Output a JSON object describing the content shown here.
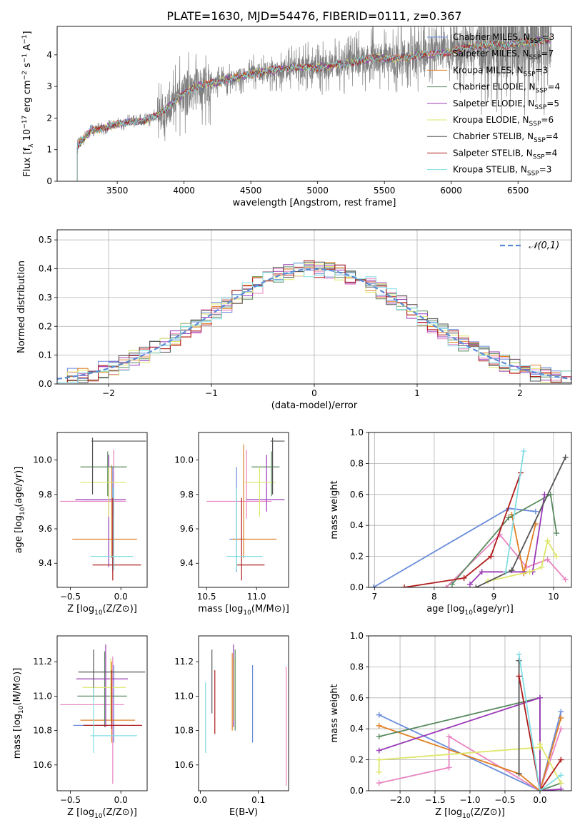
{
  "figure_title": "PLATE=1630, MJD=54476, FIBERID=0111, z=0.367",
  "series_colors": [
    "#6a8ddb",
    "#e884c0",
    "#e07f24",
    "#5a8a5f",
    "#9a3ab6",
    "#dde66a",
    "#555555",
    "#b01c1c",
    "#82dde3"
  ],
  "legend_top": [
    {
      "name": "Chabrier MILES",
      "nssp": "3"
    },
    {
      "name": "Salpeter MILES",
      "nssp": "7"
    },
    {
      "name": "Kroupa MILES",
      "nssp": "3"
    },
    {
      "name": "Chabrier ELODIE",
      "nssp": "4"
    },
    {
      "name": "Salpeter ELODIE",
      "nssp": "5"
    },
    {
      "name": "Kroupa ELODIE",
      "nssp": "6"
    },
    {
      "name": "Chabrier STELIB",
      "nssp": "4"
    },
    {
      "name": "Salpeter STELIB",
      "nssp": "4"
    },
    {
      "name": "Kroupa STELIB",
      "nssp": "3"
    }
  ],
  "chart_data": [
    {
      "id": "spectrum",
      "type": "line",
      "xlabel": "wavelength [Angstrom, rest frame]",
      "ylabel": "Flux [f_λ 10^-17 erg cm^-2 s^-1 A^-1]",
      "xlim": [
        3050,
        6900
      ],
      "ylim": [
        0,
        4.9
      ],
      "xticks": [
        3500,
        4000,
        4500,
        5000,
        5500,
        6000,
        6500
      ],
      "yticks": [
        0,
        1,
        2,
        3,
        4
      ],
      "xticklabels": [
        "3500",
        "4000",
        "4500",
        "5000",
        "5500",
        "6000",
        "6500"
      ],
      "yticklabels": [
        "0",
        "1",
        "2",
        "3",
        "4"
      ],
      "continuum": {
        "x": [
          3200,
          3300,
          3500,
          3600,
          3700,
          3800,
          3900,
          4000,
          4100,
          4300,
          4500,
          4800,
          5000,
          5200,
          5400,
          5600,
          5800,
          6000,
          6200,
          6400,
          6750
        ],
        "y": [
          1.1,
          1.6,
          1.8,
          1.9,
          1.9,
          2.1,
          2.4,
          2.8,
          3.0,
          3.2,
          3.4,
          3.6,
          3.6,
          3.7,
          3.9,
          3.9,
          4.0,
          4.1,
          4.3,
          4.3,
          4.5
        ]
      }
    },
    {
      "id": "residuals",
      "type": "bar",
      "xlabel": "(data-model)/error",
      "ylabel": "Normed distribution",
      "xlim": [
        -2.5,
        2.5
      ],
      "ylim": [
        0,
        0.535
      ],
      "xticks": [
        -2,
        -1,
        0,
        1,
        2
      ],
      "yticks": [
        0,
        0.1,
        0.2,
        0.3,
        0.4,
        0.5
      ],
      "xticklabels": [
        "−2",
        "−1",
        "0",
        "1",
        "2"
      ],
      "yticklabels": [
        "0.0",
        "0.1",
        "0.2",
        "0.3",
        "0.4",
        "0.5"
      ],
      "bin_width": 0.1,
      "legend": "𝒩(0,1)",
      "legend_placement": "top-right",
      "gaussian": {
        "mu": 0,
        "sigma": 1
      }
    },
    {
      "id": "age_vs_z",
      "type": "errorbar",
      "xlabel": "Z [log10(Z/Z⊙)]",
      "ylabel": "age  [log10(age/yr)]",
      "xlim": [
        -0.63,
        0.26
      ],
      "ylim": [
        9.26,
        10.16
      ],
      "xticks": [
        -0.5,
        0.0
      ],
      "yticks": [
        9.4,
        9.6,
        9.8,
        10.0
      ],
      "xticklabels": [
        "−0.5",
        "0.0"
      ],
      "yticklabels": [
        "9.4",
        "9.6",
        "9.8",
        "10.0"
      ],
      "points": [
        {
          "x": -0.08,
          "y": 9.76,
          "x0": -0.38,
          "x1": 0.01,
          "y0": 9.35,
          "y1": 9.96
        },
        {
          "x": -0.07,
          "y": 9.76,
          "x0": -0.6,
          "x1": 0.05,
          "y0": 9.66,
          "y1": 10.06
        },
        {
          "x": -0.09,
          "y": 9.54,
          "x0": -0.48,
          "x1": 0.16,
          "y0": 9.43,
          "y1": 9.97
        },
        {
          "x": -0.13,
          "y": 9.96,
          "x0": -0.4,
          "x1": 0.06,
          "y0": 9.79,
          "y1": 10.05
        },
        {
          "x": -0.12,
          "y": 9.77,
          "x0": -0.45,
          "x1": 0.05,
          "y0": 9.38,
          "y1": 10.03
        },
        {
          "x": -0.12,
          "y": 9.87,
          "x0": -0.4,
          "x1": 0.05,
          "y0": 9.67,
          "y1": 9.96
        },
        {
          "x": -0.28,
          "y": 10.11,
          "x0": -0.29,
          "x1": 0.25,
          "y0": 9.8,
          "y1": 10.13
        },
        {
          "x": -0.08,
          "y": 9.39,
          "x0": -0.28,
          "x1": 0.2,
          "y0": 9.3,
          "y1": 9.78
        },
        {
          "x": -0.07,
          "y": 9.44,
          "x0": -0.3,
          "x1": 0.12,
          "y0": 9.36,
          "y1": 9.84
        }
      ]
    },
    {
      "id": "age_vs_mass",
      "type": "errorbar",
      "xlabel": "mass [log10(M/M⊙)]",
      "ylabel": "",
      "xlim": [
        10.42,
        11.32
      ],
      "ylim": [
        9.26,
        10.16
      ],
      "xticks": [
        10.5,
        11.0
      ],
      "yticks": [
        9.4,
        9.6,
        9.8,
        10.0
      ],
      "xticklabels": [
        "10.5",
        "11.0"
      ],
      "yticklabels": [
        "9.4",
        "9.6",
        "9.8",
        "10.0"
      ],
      "points": [
        {
          "x": 10.8,
          "y": 9.54,
          "x0": 10.73,
          "x1": 10.89,
          "y0": 9.35,
          "y1": 9.96
        },
        {
          "x": 10.9,
          "y": 9.76,
          "x0": 10.5,
          "x1": 11.15,
          "y0": 9.66,
          "y1": 10.06
        },
        {
          "x": 10.87,
          "y": 9.54,
          "x0": 10.76,
          "x1": 11.2,
          "y0": 9.43,
          "y1": 10.09
        },
        {
          "x": 11.15,
          "y": 9.96,
          "x0": 10.95,
          "x1": 11.23,
          "y0": 9.79,
          "y1": 10.05
        },
        {
          "x": 11.1,
          "y": 9.77,
          "x0": 10.9,
          "x1": 11.28,
          "y0": 9.7,
          "y1": 10.03
        },
        {
          "x": 11.03,
          "y": 9.87,
          "x0": 10.88,
          "x1": 11.19,
          "y0": 9.67,
          "y1": 9.96
        },
        {
          "x": 11.16,
          "y": 10.11,
          "x0": 11.14,
          "x1": 11.28,
          "y0": 9.8,
          "y1": 10.13
        },
        {
          "x": 10.85,
          "y": 9.39,
          "x0": 10.8,
          "x1": 11.08,
          "y0": 9.3,
          "y1": 9.78
        },
        {
          "x": 10.8,
          "y": 9.44,
          "x0": 10.7,
          "x1": 11.06,
          "y0": 9.36,
          "y1": 9.84
        }
      ]
    },
    {
      "id": "weight_vs_age",
      "type": "line",
      "xlabel": "age  [log10(age/yr)]",
      "ylabel": "mass weight",
      "xlim": [
        6.9,
        10.3
      ],
      "ylim": [
        0,
        1.0
      ],
      "xticks": [
        7,
        8,
        9,
        10
      ],
      "yticks": [
        0,
        0.2,
        0.4,
        0.6,
        0.8,
        1.0
      ],
      "xticklabels": [
        "7",
        "8",
        "9",
        "10"
      ],
      "yticklabels": [
        "0.0",
        "0.2",
        "0.4",
        "0.6",
        "0.8",
        "1.0"
      ],
      "series": [
        {
          "points": [
            [
              6.98,
              0.0
            ],
            [
              9.25,
              0.51
            ],
            [
              9.7,
              0.49
            ]
          ]
        },
        {
          "points": [
            [
              8.2,
              0.0
            ],
            [
              9.1,
              0.34
            ],
            [
              9.55,
              0.13
            ],
            [
              9.9,
              0.18
            ],
            [
              10.2,
              0.05
            ]
          ]
        },
        {
          "points": [
            [
              9.3,
              0.47
            ],
            [
              9.5,
              0.09
            ],
            [
              9.7,
              0.41
            ]
          ]
        },
        {
          "points": [
            [
              8.3,
              0.02
            ],
            [
              9.25,
              0.45
            ],
            [
              9.95,
              0.6
            ],
            [
              10.05,
              0.35
            ]
          ]
        },
        {
          "points": [
            [
              8.6,
              0.02
            ],
            [
              8.8,
              0.1
            ],
            [
              9.65,
              0.1
            ],
            [
              9.85,
              0.6
            ]
          ]
        },
        {
          "points": [
            [
              8.9,
              0.04
            ],
            [
              9.6,
              0.1
            ],
            [
              9.8,
              0.13
            ],
            [
              9.9,
              0.3
            ],
            [
              10.05,
              0.2
            ]
          ]
        },
        {
          "points": [
            [
              8.7,
              0.0
            ],
            [
              9.3,
              0.11
            ],
            [
              10.2,
              0.84
            ]
          ]
        },
        {
          "points": [
            [
              7.5,
              0.0
            ],
            [
              8.5,
              0.06
            ],
            [
              8.95,
              0.2
            ],
            [
              9.45,
              0.74
            ]
          ]
        },
        {
          "points": [
            [
              9.2,
              0.1
            ],
            [
              9.5,
              0.88
            ]
          ]
        }
      ]
    },
    {
      "id": "mass_vs_z",
      "type": "errorbar",
      "xlabel": "Z [log10(Z/Z⊙)]",
      "ylabel": "mass [log10(M/M⊙)]",
      "xlim": [
        -0.63,
        0.26
      ],
      "ylim": [
        10.45,
        11.35
      ],
      "xticks": [
        -0.5,
        0.0
      ],
      "yticks": [
        10.6,
        10.8,
        11.0,
        11.2
      ],
      "xticklabels": [
        "−0.5",
        "0.0"
      ],
      "yticklabels": [
        "10.6",
        "10.8",
        "11.0",
        "11.2"
      ],
      "points": [
        {
          "x": -0.07,
          "y": 10.83,
          "x0": -0.47,
          "x1": 0.01,
          "y0": 10.73,
          "y1": 11.18
        },
        {
          "x": -0.08,
          "y": 10.95,
          "x0": -0.6,
          "x1": 0.03,
          "y0": 10.49,
          "y1": 11.23
        },
        {
          "x": -0.09,
          "y": 10.86,
          "x0": -0.4,
          "x1": 0.14,
          "y0": 10.73,
          "y1": 11.2
        },
        {
          "x": -0.16,
          "y": 11.0,
          "x0": -0.43,
          "x1": 0.06,
          "y0": 10.82,
          "y1": 11.26
        },
        {
          "x": -0.15,
          "y": 11.1,
          "x0": -0.44,
          "x1": 0.07,
          "y0": 10.82,
          "y1": 11.3
        },
        {
          "x": -0.1,
          "y": 11.05,
          "x0": -0.38,
          "x1": 0.05,
          "y0": 10.85,
          "y1": 11.22
        },
        {
          "x": -0.27,
          "y": 11.14,
          "x0": -0.42,
          "x1": 0.24,
          "y0": 10.98,
          "y1": 11.27
        },
        {
          "x": -0.09,
          "y": 10.83,
          "x0": -0.37,
          "x1": 0.21,
          "y0": 10.81,
          "y1": 11.15
        },
        {
          "x": -0.27,
          "y": 10.77,
          "x0": -0.3,
          "x1": 0.16,
          "y0": 10.67,
          "y1": 11.05
        }
      ]
    },
    {
      "id": "mass_vs_ebv",
      "type": "errorbar",
      "xlabel": "E(B-V)",
      "ylabel": "",
      "xlim": [
        -0.003,
        0.152
      ],
      "ylim": [
        10.45,
        11.35
      ],
      "xticks": [
        0.0,
        0.1
      ],
      "yticks": [
        10.6,
        10.8,
        11.0,
        11.2
      ],
      "xticklabels": [
        "0.0",
        "0.1"
      ],
      "yticklabels": [
        "10.6",
        "10.8",
        "11.0",
        "11.2"
      ],
      "points": [
        {
          "x": 0.09,
          "y": 10.95,
          "y0": 10.73,
          "y1": 11.18
        },
        {
          "x": 0.148,
          "y": 10.8,
          "y0": 10.48,
          "y1": 11.17
        },
        {
          "x": 0.055,
          "y": 10.95,
          "y0": 10.8,
          "y1": 11.25
        },
        {
          "x": 0.06,
          "y": 11.05,
          "y0": 10.8,
          "y1": 11.27
        },
        {
          "x": 0.057,
          "y": 11.1,
          "y0": 10.82,
          "y1": 11.3
        },
        {
          "x": 0.058,
          "y": 11.0,
          "y0": 10.86,
          "y1": 11.22
        },
        {
          "x": 0.02,
          "y": 11.1,
          "y0": 10.9,
          "y1": 11.27
        },
        {
          "x": 0.025,
          "y": 10.95,
          "y0": 10.78,
          "y1": 11.15
        },
        {
          "x": 0.009,
          "y": 10.9,
          "y0": 10.67,
          "y1": 11.08
        }
      ]
    },
    {
      "id": "weight_vs_z",
      "type": "line",
      "xlabel": "Z [log10(Z/Z⊙)]",
      "ylabel": "mass weight",
      "xlim": [
        -2.45,
        0.45
      ],
      "ylim": [
        0,
        1.0
      ],
      "xticks": [
        -2.0,
        -1.5,
        -1.0,
        -0.5,
        0.0
      ],
      "yticks": [
        0,
        0.2,
        0.4,
        0.6,
        0.8,
        1.0
      ],
      "xticklabels": [
        "−2.0",
        "−1.5",
        "−1.0",
        "−0.5",
        "0.0"
      ],
      "yticklabels": [
        "0.0",
        "0.2",
        "0.4",
        "0.6",
        "0.8",
        "1.0"
      ],
      "series": [
        {
          "points": [
            [
              -2.3,
              0.49
            ],
            [
              0.0,
              0.0
            ],
            [
              0.3,
              0.51
            ]
          ]
        },
        {
          "points": [
            [
              -2.3,
              0.05
            ],
            [
              -1.3,
              0.15
            ],
            [
              -1.3,
              0.35
            ],
            [
              0.0,
              0.0
            ],
            [
              0.3,
              0.4
            ]
          ]
        },
        {
          "points": [
            [
              -2.3,
              0.42
            ],
            [
              -0.3,
              0.11
            ],
            [
              0.0,
              0.0
            ],
            [
              0.3,
              0.47
            ]
          ]
        },
        {
          "points": [
            [
              -2.3,
              0.35
            ],
            [
              0.0,
              0.6
            ],
            [
              0.0,
              0.0
            ],
            [
              0.3,
              0.05
            ]
          ]
        },
        {
          "points": [
            [
              -2.3,
              0.26
            ],
            [
              0.0,
              0.6
            ],
            [
              0.0,
              0.0
            ],
            [
              0.3,
              0.01
            ]
          ]
        },
        {
          "points": [
            [
              -2.3,
              0.12
            ],
            [
              -2.3,
              0.2
            ],
            [
              0.0,
              0.28
            ],
            [
              0.0,
              0.3
            ],
            [
              0.3,
              0.05
            ]
          ]
        },
        {
          "points": [
            [
              -0.3,
              0.84
            ],
            [
              -0.3,
              0.11
            ]
          ]
        },
        {
          "points": [
            [
              -0.3,
              0.74
            ],
            [
              0.0,
              0.0
            ],
            [
              0.3,
              0.2
            ]
          ]
        },
        {
          "points": [
            [
              -0.3,
              0.88
            ],
            [
              0.0,
              0.0
            ],
            [
              0.3,
              0.1
            ]
          ]
        }
      ]
    }
  ]
}
